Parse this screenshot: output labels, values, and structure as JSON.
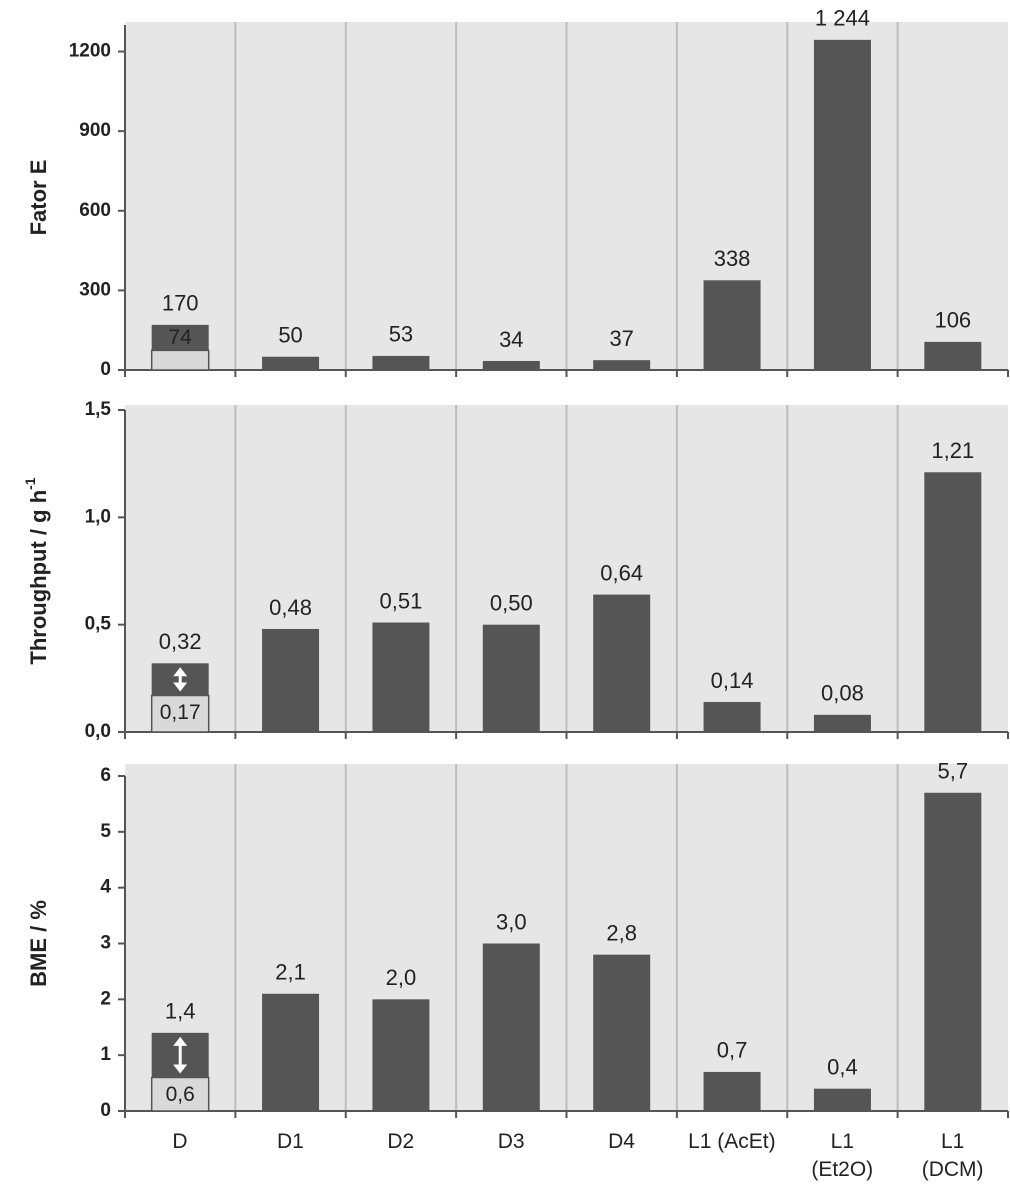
{
  "chart_data": [
    {
      "type": "bar",
      "y_label": "Fator E",
      "values": [
        170,
        50,
        53,
        34,
        37,
        338,
        1244,
        106
      ],
      "value_labels": [
        "170",
        "50",
        "53",
        "34",
        "37",
        "338",
        "1 244",
        "106"
      ],
      "inner_values": [
        74,
        null,
        null,
        null,
        null,
        null,
        null,
        null
      ],
      "inner_value_labels": [
        "74",
        null,
        null,
        null,
        null,
        null,
        null,
        null
      ],
      "color": "#555555",
      "inner_color": "#d9d9d9",
      "ylim": [
        0,
        1300
      ],
      "yticks": [
        0,
        300,
        600,
        900,
        1200
      ]
    },
    {
      "type": "bar",
      "y_label": "Throughput / g h",
      "y_label_superscript": "-1",
      "values": [
        0.32,
        0.48,
        0.51,
        0.5,
        0.64,
        0.14,
        0.08,
        1.21
      ],
      "value_labels": [
        "0,32",
        "0,48",
        "0,51",
        "0,50",
        "0,64",
        "0,14",
        "0,08",
        "1,21"
      ],
      "inner_values": [
        0.17,
        null,
        null,
        null,
        null,
        null,
        null,
        null
      ],
      "inner_value_labels": [
        "0,17",
        null,
        null,
        null,
        null,
        null,
        null,
        null
      ],
      "color": "#555555",
      "inner_color": "#d9d9d9",
      "ylim": [
        0,
        1.5
      ],
      "yticks": [
        {
          "value": 0,
          "label": "0,0"
        },
        {
          "value": 0.5,
          "label": "0,5"
        },
        {
          "value": 1,
          "label": "1,0"
        },
        {
          "value": 1.5,
          "label": "1,5"
        }
      ]
    },
    {
      "type": "bar",
      "y_label": "BME / %",
      "categories": [
        "D",
        "D1",
        "D2",
        "D3",
        "D4",
        "L1 (AcEt)",
        "L1\n(Et2O)",
        "L1\n(DCM)"
      ],
      "values": [
        1.4,
        2.1,
        2.0,
        3.0,
        2.8,
        0.7,
        0.4,
        5.7
      ],
      "value_labels": [
        "1,4",
        "2,1",
        "2,0",
        "3,0",
        "2,8",
        "0,7",
        "0,4",
        "5,7"
      ],
      "inner_values": [
        0.6,
        null,
        null,
        null,
        null,
        null,
        null,
        null
      ],
      "inner_value_labels": [
        "0,6",
        null,
        null,
        null,
        null,
        null,
        null,
        null
      ],
      "color": "#555555",
      "inner_color": "#d9d9d9",
      "ylim": [
        0,
        6
      ],
      "yticks": [
        0,
        1,
        2,
        3,
        4,
        5,
        6
      ]
    }
  ]
}
